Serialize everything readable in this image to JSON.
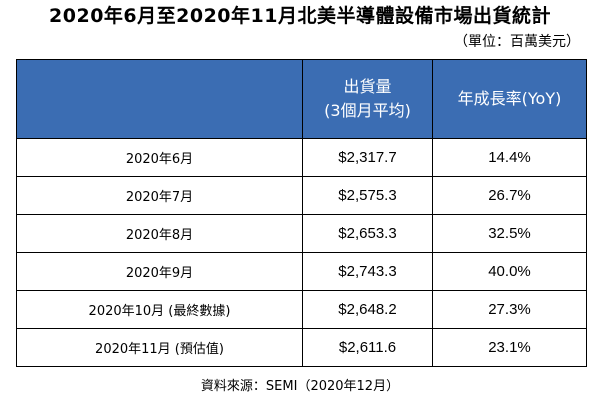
{
  "title": "2020年6月至2020年11月北美半導體設備市場出貨統計",
  "unit_note": "（單位：百萬美元）",
  "table": {
    "headers": {
      "col1": "",
      "col2_line1": "出貨量",
      "col2_line2": "(3個月平均)",
      "col3": "年成長率(YoY)"
    },
    "rows": [
      {
        "month": "2020年6月",
        "shipments": "$2,317.7",
        "yoy": "14.4%"
      },
      {
        "month": "2020年7月",
        "shipments": "$2,575.3",
        "yoy": "26.7%"
      },
      {
        "month": "2020年8月",
        "shipments": "$2,653.3",
        "yoy": "32.5%"
      },
      {
        "month": "2020年9月",
        "shipments": "$2,743.3",
        "yoy": "40.0%"
      },
      {
        "month": "2020年10月 (最終數據)",
        "shipments": "$2,648.2",
        "yoy": "27.3%"
      },
      {
        "month": "2020年11月 (預估值)",
        "shipments": "$2,611.6",
        "yoy": "23.1%"
      }
    ]
  },
  "source": "資料來源：SEMI（2020年12月）",
  "colors": {
    "header_bg": "#3b6db3",
    "header_text": "#ffffff",
    "border": "#000000"
  }
}
